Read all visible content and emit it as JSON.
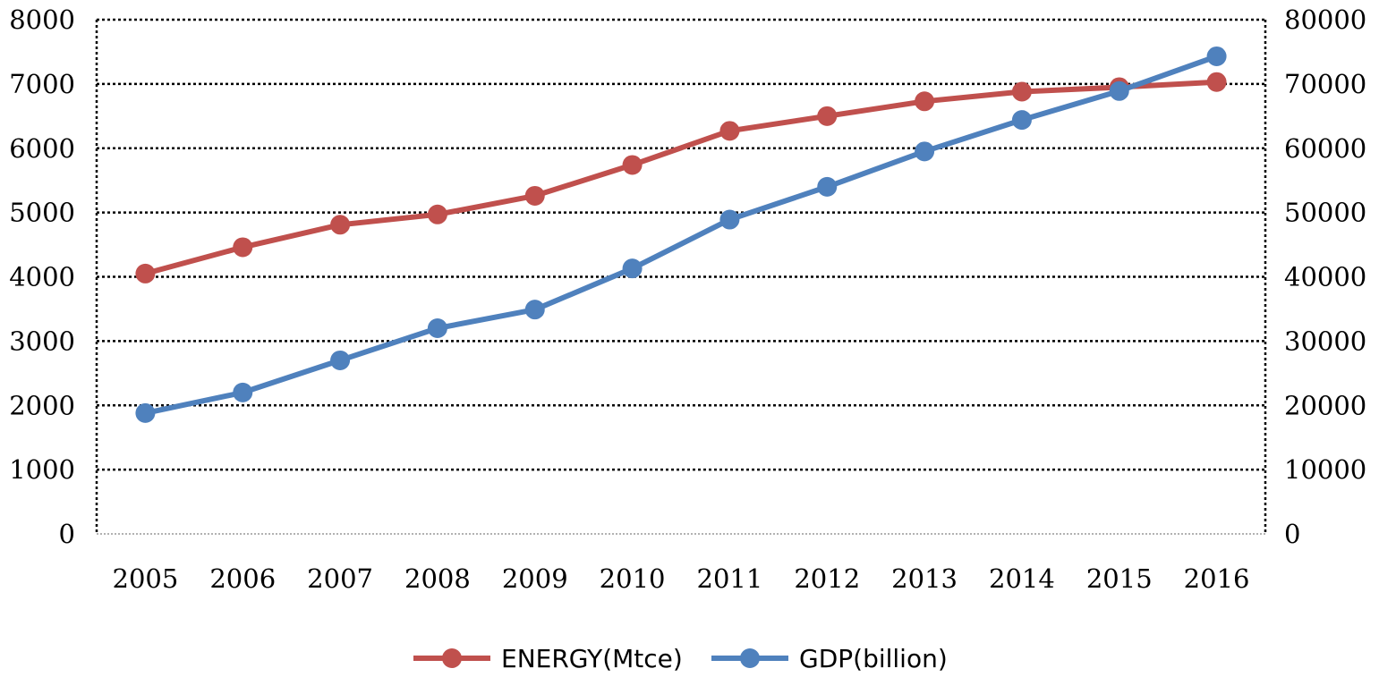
{
  "chart_data": {
    "type": "line",
    "title": "",
    "categories": [
      "2005",
      "2006",
      "2007",
      "2008",
      "2009",
      "2010",
      "2011",
      "2012",
      "2013",
      "2014",
      "2015",
      "2016"
    ],
    "y_left": {
      "label": "",
      "range": [
        0,
        8000
      ],
      "ticks": [
        "0",
        "1000",
        "2000",
        "3000",
        "4000",
        "5000",
        "6000",
        "7000",
        "8000"
      ]
    },
    "y_right": {
      "label": "",
      "range": [
        0,
        80000
      ],
      "ticks": [
        "0",
        "10000",
        "20000",
        "30000",
        "40000",
        "50000",
        "60000",
        "70000",
        "80000"
      ]
    },
    "series": [
      {
        "name": "ENERGY(Mtce)",
        "axis": "left",
        "color": "#c0504d",
        "values": [
          4050,
          4460,
          4810,
          4970,
          5260,
          5740,
          6270,
          6500,
          6730,
          6880,
          6950,
          7030
        ]
      },
      {
        "name": "GDP(billion)",
        "axis": "right",
        "color": "#4f81bd",
        "values": [
          18800,
          22000,
          27000,
          32000,
          34900,
          41300,
          48900,
          54000,
          59500,
          64400,
          68900,
          74300
        ]
      }
    ],
    "grid": true,
    "legend_position": "bottom"
  }
}
